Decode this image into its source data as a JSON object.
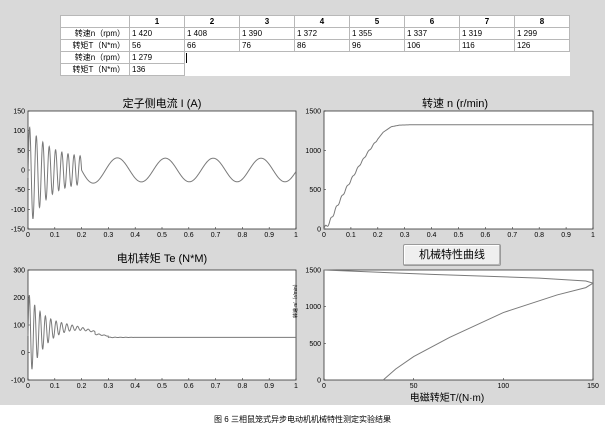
{
  "table": {
    "headers": [
      "",
      "1",
      "2",
      "3",
      "4",
      "5",
      "6",
      "7",
      "8"
    ],
    "rows": [
      {
        "label": "转速n（rpm）",
        "values": [
          "1 420",
          "1 408",
          "1 390",
          "1 372",
          "1 355",
          "1 337",
          "1 319",
          "1 299"
        ]
      },
      {
        "label": "转矩T（N*m）",
        "values": [
          "56",
          "66",
          "76",
          "86",
          "96",
          "106",
          "116",
          "126"
        ]
      },
      {
        "label": "转速n（rpm）",
        "values": [
          "1 279"
        ]
      },
      {
        "label": "转矩T（N*m）",
        "values": [
          "136"
        ]
      }
    ]
  },
  "button_label": "机械特性曲线",
  "caption": "图 6 三相鼠笼式异步电动机机械特性测定实验结果",
  "y_label_4": "转速 n/（r/min）",
  "chart_data": [
    {
      "type": "line",
      "title": "定子侧电流 I (A)",
      "xlabel": "",
      "ylabel": "",
      "xlim": [
        0,
        1
      ],
      "ylim": [
        -150,
        150
      ],
      "xticks": [
        "0",
        "0.1",
        "0.2",
        "0.3",
        "0.4",
        "0.5",
        "0.6",
        "0.7",
        "0.8",
        "0.9",
        "1"
      ],
      "yticks": [
        "-150",
        "-100",
        "-50",
        "0",
        "50",
        "100",
        "150"
      ],
      "series": [
        {
          "description": "start-up transient, peaks about ±135 A decaying to a steady 50 Hz oscillation of about ±30 A"
        }
      ]
    },
    {
      "type": "line",
      "title": "转速 n (r/min)",
      "xlabel": "",
      "ylabel": "",
      "xlim": [
        0,
        1
      ],
      "ylim": [
        0,
        1500
      ],
      "xticks": [
        "0",
        "0.1",
        "0.2",
        "0.3",
        "0.4",
        "0.5",
        "0.6",
        "0.7",
        "0.8",
        "0.9",
        "1"
      ],
      "yticks": [
        "0",
        "500",
        "1000",
        "1500"
      ],
      "series": [
        {
          "x": [
            0,
            0.02,
            0.05,
            0.08,
            0.1,
            0.13,
            0.16,
            0.19,
            0.22,
            0.25,
            0.28,
            0.32,
            1.0
          ],
          "values": [
            0,
            80,
            300,
            500,
            620,
            800,
            960,
            1100,
            1230,
            1300,
            1320,
            1325,
            1325
          ]
        }
      ]
    },
    {
      "type": "line",
      "title": "电机转矩 Te (N*M)",
      "xlabel": "",
      "ylabel": "",
      "xlim": [
        0,
        1
      ],
      "ylim": [
        -100,
        300
      ],
      "xticks": [
        "0",
        "0.1",
        "0.2",
        "0.3",
        "0.4",
        "0.5",
        "0.6",
        "0.7",
        "0.8",
        "0.9",
        "1"
      ],
      "yticks": [
        "-100",
        "0",
        "100",
        "200",
        "300"
      ],
      "series": [
        {
          "description": "start-up transient, peaks about 250 and dips to about -40, settling to about 55 N*m after 0.3 s"
        }
      ]
    },
    {
      "type": "line",
      "title": "",
      "xlabel": "电磁转矩T/(N·m)",
      "ylabel": "转速 n/（r/min）",
      "xlim": [
        0,
        150
      ],
      "ylim": [
        0,
        1500
      ],
      "xticks": [
        "0",
        "50",
        "100",
        "150"
      ],
      "yticks": [
        "0",
        "500",
        "1000",
        "1500"
      ],
      "series": [
        {
          "x": [
            0,
            60,
            120,
            146,
            150,
            146,
            130,
            100,
            70,
            50,
            40,
            33
          ],
          "values": [
            1500,
            1440,
            1390,
            1350,
            1320,
            1260,
            1160,
            920,
            580,
            320,
            150,
            0
          ]
        }
      ]
    }
  ]
}
